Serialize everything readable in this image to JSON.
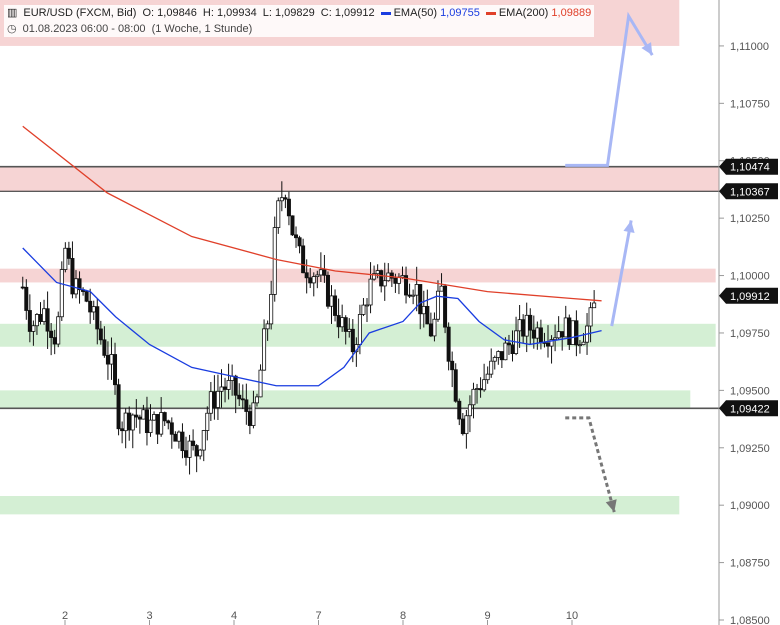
{
  "header": {
    "symbol": "EUR/USD (FXCM, Bid)",
    "o_label": "O:",
    "o": "1,09846",
    "h_label": "H:",
    "h": "1,09934",
    "l_label": "L:",
    "l": "1,09829",
    "c_label": "C:",
    "c": "1,09912",
    "date": "01.08.2023 06:00 - 08:00",
    "range": "(1 Woche, 1 Stunde)"
  },
  "legend": [
    {
      "name": "EMA(50)",
      "value": "1,09755",
      "color": "#1a3de0"
    },
    {
      "name": "EMA(200)",
      "value": "1,09889",
      "color": "#e0402a"
    }
  ],
  "colors": {
    "up": "#ffffff",
    "down": "#111111",
    "resistance": "#f4cccc",
    "support": "#cdeccd",
    "arrow": "#a8b7f5",
    "arrow_down": "#777777"
  },
  "chart_data": {
    "type": "candlestick",
    "ylim": [
      1.085,
      1.112
    ],
    "xlim": [
      0.5,
      10.8
    ],
    "y_ticks": [
      "1,11000",
      "1,10750",
      "1,10500",
      "1,10250",
      "1,10000",
      "1,09750",
      "1,09500",
      "1,09250",
      "1,09000",
      "1,08750",
      "1,08500"
    ],
    "y_tick_values": [
      1.11,
      1.1075,
      1.105,
      1.1025,
      1.1,
      1.0975,
      1.095,
      1.0925,
      1.09,
      1.0875,
      1.085
    ],
    "x_ticks": [
      "2",
      "3",
      "4",
      "7",
      "8",
      "9",
      "10"
    ],
    "x_tick_values": [
      1,
      2,
      3,
      4,
      5,
      6,
      7
    ],
    "price_tags": [
      {
        "label": "1,10474",
        "value": 1.10474
      },
      {
        "label": "1,10367",
        "value": 1.10367
      },
      {
        "label": "1,09912",
        "value": 1.09912
      },
      {
        "label": "1,09422",
        "value": 1.09422
      }
    ],
    "horizontal_lines": [
      1.10474,
      1.10367,
      1.09422
    ],
    "zones": [
      {
        "kind": "resistance",
        "from": 1.11,
        "to": 1.113,
        "x_end": 8.27
      },
      {
        "kind": "resistance",
        "from": 1.10367,
        "to": 1.10474,
        "x_end": 10.8
      },
      {
        "kind": "resistance",
        "from": 1.0997,
        "to": 1.1003,
        "x_end": 8.7
      },
      {
        "kind": "support",
        "from": 1.0969,
        "to": 1.0979,
        "x_end": 8.7
      },
      {
        "kind": "support",
        "from": 1.0942,
        "to": 1.095,
        "x_end": 8.4
      },
      {
        "kind": "support",
        "from": 1.0896,
        "to": 1.0904,
        "x_end": 8.27
      }
    ],
    "ema200": [
      [
        0.5,
        1.1065
      ],
      [
        1.5,
        1.1036
      ],
      [
        2.5,
        1.1017
      ],
      [
        3.5,
        1.1007
      ],
      [
        4.2,
        1.1002
      ],
      [
        5.0,
        1.0999
      ],
      [
        6.0,
        1.0993
      ],
      [
        7.0,
        1.099
      ],
      [
        7.35,
        1.0989
      ]
    ],
    "ema50": [
      [
        0.5,
        1.1012
      ],
      [
        0.9,
        1.0997
      ],
      [
        1.3,
        1.0993
      ],
      [
        1.6,
        1.0982
      ],
      [
        2.0,
        1.097
      ],
      [
        2.5,
        1.096
      ],
      [
        3.0,
        1.0956
      ],
      [
        3.5,
        1.0952
      ],
      [
        4.0,
        1.0952
      ],
      [
        4.3,
        1.096
      ],
      [
        4.6,
        1.0975
      ],
      [
        5.0,
        1.098
      ],
      [
        5.2,
        1.0988
      ],
      [
        5.4,
        1.0991
      ],
      [
        5.65,
        1.099
      ],
      [
        5.9,
        1.098
      ],
      [
        6.2,
        1.0972
      ],
      [
        6.5,
        1.097
      ],
      [
        7.0,
        1.0973
      ],
      [
        7.35,
        1.0976
      ]
    ],
    "candle_path": [
      [
        0.5,
        1.0995
      ],
      [
        0.6,
        1.0978
      ],
      [
        0.75,
        1.0985
      ],
      [
        0.9,
        1.0972
      ],
      [
        1.0,
        1.1012
      ],
      [
        1.1,
        1.0995
      ],
      [
        1.25,
        1.099
      ],
      [
        1.4,
        1.0975
      ],
      [
        1.55,
        1.096
      ],
      [
        1.65,
        1.0935
      ],
      [
        1.8,
        1.094
      ],
      [
        2.0,
        1.0935
      ],
      [
        2.2,
        1.0937
      ],
      [
        2.4,
        1.0928
      ],
      [
        2.55,
        1.0922
      ],
      [
        2.7,
        1.0943
      ],
      [
        2.85,
        1.0952
      ],
      [
        3.0,
        1.095
      ],
      [
        3.1,
        1.0943
      ],
      [
        3.25,
        1.0938
      ],
      [
        3.35,
        1.097
      ],
      [
        3.42,
        1.0985
      ],
      [
        3.5,
        1.1025
      ],
      [
        3.6,
        1.104
      ],
      [
        3.7,
        1.1018
      ],
      [
        3.8,
        1.1005
      ],
      [
        4.0,
        1.1
      ],
      [
        4.2,
        1.0985
      ],
      [
        4.4,
        1.0968
      ],
      [
        4.6,
        1.0995
      ],
      [
        4.8,
        1.1
      ],
      [
        5.0,
        1.0998
      ],
      [
        5.15,
        1.0996
      ],
      [
        5.25,
        1.098
      ],
      [
        5.35,
        1.0975
      ],
      [
        5.45,
        1.0995
      ],
      [
        5.55,
        1.0965
      ],
      [
        5.7,
        1.0935
      ],
      [
        5.85,
        1.095
      ],
      [
        6.0,
        1.0957
      ],
      [
        6.15,
        1.0965
      ],
      [
        6.3,
        1.0972
      ],
      [
        6.45,
        1.0978
      ],
      [
        6.6,
        1.0976
      ],
      [
        6.75,
        1.0975
      ],
      [
        6.9,
        1.0978
      ],
      [
        7.05,
        1.0973
      ],
      [
        7.2,
        1.0978
      ],
      [
        7.3,
        1.0991
      ]
    ],
    "forecast_up": [
      [
        7.47,
        1.0978
      ],
      [
        7.7,
        1.1024
      ]
    ],
    "forecast_top": [
      [
        6.92,
        1.1048
      ],
      [
        7.42,
        1.1048
      ],
      [
        7.67,
        1.1113
      ],
      [
        7.95,
        1.1096
      ]
    ],
    "forecast_down": [
      [
        6.92,
        1.0938
      ],
      [
        7.2,
        1.0938
      ],
      [
        7.5,
        1.0897
      ]
    ]
  }
}
